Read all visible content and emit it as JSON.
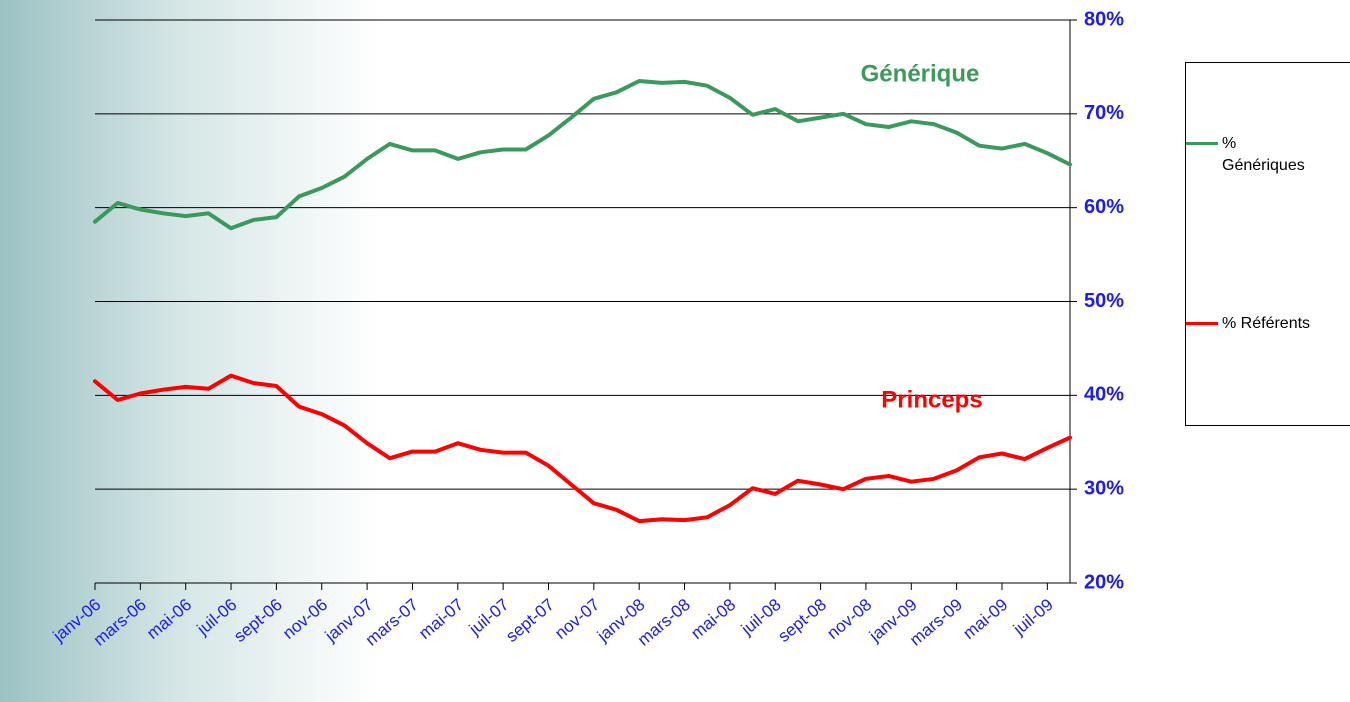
{
  "chart_data": {
    "type": "line",
    "categories": [
      "janv-06",
      null,
      "mars-06",
      null,
      "mai-06",
      null,
      "juil-06",
      null,
      "sept-06",
      null,
      "nov-06",
      null,
      "janv-07",
      null,
      "mars-07",
      null,
      "mai-07",
      null,
      "juil-07",
      null,
      "sept-07",
      null,
      "nov-07",
      null,
      "janv-08",
      null,
      "mars-08",
      null,
      "mai-08",
      null,
      "juil-08",
      null,
      "sept-08",
      null,
      "nov-08",
      null,
      "janv-09",
      null,
      "mars-09",
      null,
      "mai-09",
      null,
      "juil-09",
      null
    ],
    "series": [
      {
        "name": "% Génériques",
        "color": "#3a9a5b",
        "values": [
          58.5,
          60.5,
          59.8,
          59.4,
          59.1,
          59.4,
          57.8,
          58.7,
          59.0,
          61.2,
          62.1,
          63.3,
          65.2,
          66.8,
          66.1,
          66.1,
          65.2,
          65.9,
          66.2,
          66.2,
          67.7,
          69.6,
          71.6,
          72.3,
          73.5,
          73.3,
          73.4,
          73.0,
          71.7,
          69.9,
          70.5,
          69.2,
          69.6,
          70.0,
          68.9,
          68.6,
          69.2,
          68.9,
          68.0,
          66.6,
          66.3,
          66.8,
          65.8,
          64.6
        ]
      },
      {
        "name": "% Référents",
        "color": "#ff0000",
        "values": [
          41.5,
          39.5,
          40.2,
          40.6,
          40.9,
          40.7,
          42.1,
          41.3,
          41.0,
          38.8,
          38.0,
          36.8,
          34.9,
          33.3,
          34.0,
          34.0,
          34.9,
          34.2,
          33.9,
          33.9,
          32.5,
          30.5,
          28.5,
          27.8,
          26.6,
          26.8,
          26.7,
          27.0,
          28.3,
          30.1,
          29.5,
          30.9,
          30.5,
          30.0,
          31.1,
          31.4,
          30.8,
          31.1,
          32.0,
          33.4,
          33.8,
          33.2,
          34.4,
          35.5
        ]
      }
    ],
    "ylim": [
      20,
      80
    ],
    "yticks": [
      {
        "value": 20,
        "label": "20%"
      },
      {
        "value": 30,
        "label": "30%"
      },
      {
        "value": 40,
        "label": "40%"
      },
      {
        "value": 50,
        "label": "50%"
      },
      {
        "value": 60,
        "label": "60%"
      },
      {
        "value": 70,
        "label": "70%"
      },
      {
        "value": 80,
        "label": "80%"
      }
    ],
    "grid": true,
    "legend": "right",
    "annotations": [
      {
        "text": "Générique",
        "color": "#3a9a5b"
      },
      {
        "text": "Princeps",
        "color": "#ff0000"
      }
    ]
  }
}
